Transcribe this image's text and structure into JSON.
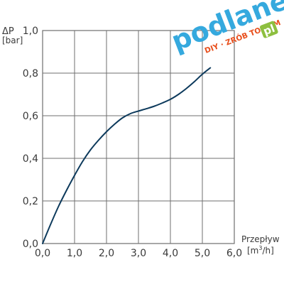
{
  "chart_data": {
    "type": "line",
    "title": "",
    "xlabel": "Przepływ",
    "xunit_base": "[m",
    "xunit_sup": "3",
    "xunit_tail": "/h]",
    "ylabel": "ΔP",
    "yunit": "[bar]",
    "xlim": [
      0,
      6
    ],
    "ylim": [
      0,
      1
    ],
    "x_ticks": [
      "0,0",
      "1,0",
      "2,0",
      "3,0",
      "4,0",
      "5,0",
      "6,0"
    ],
    "y_ticks": [
      "0,0",
      "0,2",
      "0,4",
      "0,6",
      "0,8",
      "1,0"
    ],
    "grid": true,
    "series": [
      {
        "x": [
          0,
          0.25,
          0.5,
          0.75,
          1.0,
          1.25,
          1.5,
          1.75,
          2.0,
          2.25,
          2.5,
          2.75,
          3.0,
          3.25,
          3.5,
          3.75,
          4.0,
          4.25,
          4.5,
          4.75,
          5.0,
          5.25
        ],
        "y": [
          0,
          0.09,
          0.175,
          0.25,
          0.32,
          0.385,
          0.44,
          0.485,
          0.525,
          0.56,
          0.59,
          0.61,
          0.622,
          0.633,
          0.645,
          0.66,
          0.677,
          0.7,
          0.728,
          0.76,
          0.795,
          0.825
        ],
        "color": "#0d3a5c"
      }
    ]
  },
  "watermark": {
    "brand": "podlane",
    "tagline": "DIY · ZRÓB TO SAM",
    "badge": "pl",
    "colors": {
      "brand": "#35a9de",
      "tagline": "#e84e1b",
      "badge": "#8dbf3f"
    }
  },
  "colors": {
    "grid": "#6f6f6f",
    "text": "#3a3a3a"
  }
}
